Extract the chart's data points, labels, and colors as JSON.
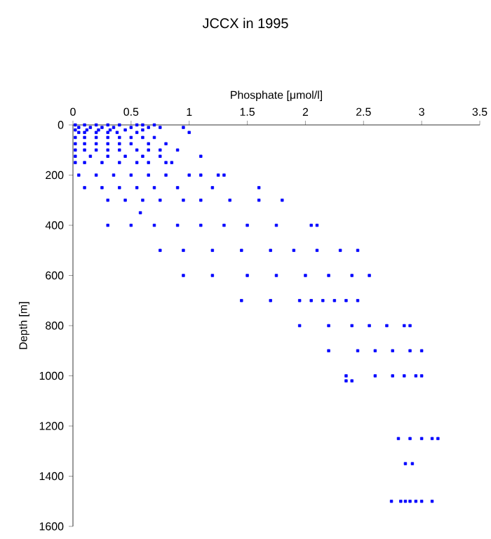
{
  "chart_data": {
    "type": "scatter",
    "title": "JCCX in 1995",
    "xlabel": "Phosphate [μmol/l]",
    "ylabel": "Depth [m]",
    "xlim": [
      0,
      3.5
    ],
    "xticks": [
      0,
      0.5,
      1,
      1.5,
      2,
      2.5,
      3,
      3.5
    ],
    "ylim": [
      1600,
      0
    ],
    "yticks": [
      0,
      200,
      400,
      600,
      800,
      1000,
      1200,
      1400,
      1600
    ],
    "marker": "square",
    "grid": false,
    "series": [
      {
        "color": "#0000ff",
        "x": [
          0.02,
          0.1,
          0.2,
          0.3,
          0.4,
          0.55,
          0.6,
          0.7,
          0.05,
          0.15,
          0.25,
          0.35,
          0.5,
          0.65,
          0.75,
          0.95,
          0.02,
          0.12,
          0.22,
          0.32,
          0.45,
          0.6,
          0.05,
          0.1,
          0.2,
          0.3,
          0.38,
          0.55,
          1.0,
          0.02,
          0.1,
          0.2,
          0.3,
          0.4,
          0.5,
          0.6,
          0.7,
          0.02,
          0.1,
          0.2,
          0.3,
          0.4,
          0.5,
          0.65,
          0.8,
          0.02,
          0.1,
          0.2,
          0.3,
          0.4,
          0.55,
          0.65,
          0.75,
          0.9,
          0.02,
          0.15,
          0.3,
          0.45,
          0.6,
          0.75,
          1.1,
          0.02,
          0.1,
          0.25,
          0.4,
          0.55,
          0.65,
          0.8,
          0.85,
          0.05,
          0.2,
          0.35,
          0.5,
          0.65,
          0.8,
          1.0,
          1.1,
          1.25,
          1.3,
          0.1,
          0.25,
          0.4,
          0.55,
          0.7,
          0.9,
          1.2,
          1.6,
          0.3,
          0.45,
          0.6,
          0.75,
          0.95,
          1.1,
          1.35,
          1.6,
          1.8,
          0.58,
          0.3,
          0.5,
          0.7,
          0.9,
          1.1,
          1.3,
          1.5,
          1.75,
          2.05,
          2.1,
          0.75,
          0.95,
          1.2,
          1.45,
          1.7,
          1.9,
          2.1,
          2.3,
          2.45,
          0.95,
          1.2,
          1.5,
          1.75,
          2.0,
          2.2,
          2.4,
          2.55,
          1.45,
          1.7,
          1.95,
          2.05,
          2.15,
          2.25,
          2.35,
          2.45,
          1.95,
          2.2,
          2.4,
          2.55,
          2.7,
          2.85,
          2.9,
          2.2,
          2.45,
          2.6,
          2.75,
          2.9,
          3.0,
          2.35,
          2.6,
          2.75,
          2.85,
          2.95,
          3.0,
          2.35,
          2.4,
          2.8,
          2.9,
          3.0,
          3.09,
          3.14,
          2.86,
          2.92,
          2.74,
          2.82,
          2.86,
          2.9,
          2.95,
          3.0,
          3.09
        ],
        "values": [
          0,
          0,
          0,
          0,
          0,
          0,
          0,
          0,
          10,
          10,
          10,
          10,
          10,
          10,
          10,
          10,
          20,
          20,
          20,
          20,
          20,
          20,
          30,
          30,
          30,
          30,
          30,
          30,
          30,
          50,
          50,
          50,
          50,
          50,
          50,
          50,
          50,
          75,
          75,
          75,
          75,
          75,
          75,
          75,
          75,
          100,
          100,
          100,
          100,
          100,
          100,
          100,
          100,
          100,
          125,
          125,
          125,
          125,
          125,
          125,
          125,
          150,
          150,
          150,
          150,
          150,
          150,
          150,
          150,
          200,
          200,
          200,
          200,
          200,
          200,
          200,
          200,
          200,
          200,
          250,
          250,
          250,
          250,
          250,
          250,
          250,
          250,
          300,
          300,
          300,
          300,
          300,
          300,
          300,
          300,
          300,
          350,
          400,
          400,
          400,
          400,
          400,
          400,
          400,
          400,
          400,
          400,
          500,
          500,
          500,
          500,
          500,
          500,
          500,
          500,
          500,
          600,
          600,
          600,
          600,
          600,
          600,
          600,
          600,
          700,
          700,
          700,
          700,
          700,
          700,
          700,
          700,
          800,
          800,
          800,
          800,
          800,
          800,
          800,
          900,
          900,
          900,
          900,
          900,
          900,
          1000,
          1000,
          1000,
          1000,
          1000,
          1000,
          1020,
          1020,
          1250,
          1250,
          1250,
          1250,
          1250,
          1350,
          1350,
          1500,
          1500,
          1500,
          1500,
          1500,
          1500,
          1500
        ]
      }
    ]
  }
}
